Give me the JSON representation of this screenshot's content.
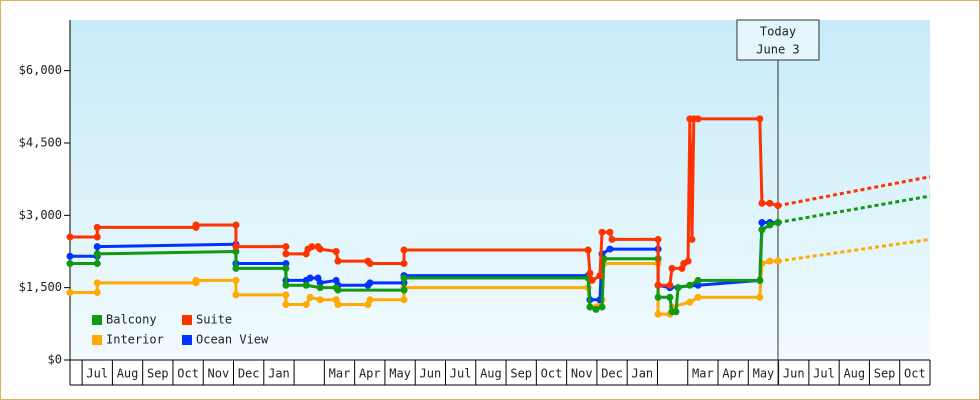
{
  "chart_data": {
    "type": "line",
    "categories": [
      "Jul",
      "Aug",
      "Sep",
      "Oct",
      "Nov",
      "Dec",
      "Jan",
      null,
      "Mar",
      "Apr",
      "May",
      "Jun",
      "Jul",
      "Aug",
      "Sep",
      "Oct",
      "Nov",
      "Dec",
      "Jan",
      null,
      "Mar",
      "Apr",
      "May",
      "Jun",
      "Jul",
      "Aug",
      "Sep",
      "Oct"
    ],
    "xlim": [
      -0.4,
      28.0
    ],
    "ylim": [
      0,
      7050
    ],
    "yticks": [
      {
        "value": 0,
        "label": "$0"
      },
      {
        "value": 1500,
        "label": "$1,500"
      },
      {
        "value": 3000,
        "label": "$3,000"
      },
      {
        "value": 4500,
        "label": "$4,500"
      },
      {
        "value": 6000,
        "label": "$6,000"
      }
    ],
    "legend": "lower-left",
    "series": [
      {
        "name": "Balcony",
        "color": "#119911",
        "x": [
          -0.4,
          0.5,
          0.5,
          5.08,
          5.08,
          6.73,
          6.73,
          7.4,
          7.86,
          8.39,
          8.45,
          10.63,
          10.63,
          16.71,
          16.77,
          16.97,
          17.17,
          17.23,
          19.02,
          19.02,
          19.41,
          19.48,
          19.61,
          19.68,
          20.07,
          20.34,
          22.38,
          22.45,
          22.71,
          22.98
        ],
        "values": [
          2000,
          2000,
          2200,
          2250,
          1900,
          1900,
          1550,
          1550,
          1500,
          1500,
          1450,
          1450,
          1700,
          1700,
          1100,
          1050,
          1100,
          2100,
          2100,
          1300,
          1300,
          1000,
          1000,
          1500,
          1550,
          1650,
          1650,
          2700,
          2800,
          2850
        ],
        "forecast": {
          "x": [
            22.98,
            28.0
          ],
          "values": [
            2850,
            3400
          ]
        }
      },
      {
        "name": "Suite",
        "color": "#ff3300",
        "x": [
          -0.4,
          0.5,
          0.5,
          3.76,
          3.76,
          5.08,
          5.08,
          6.73,
          6.73,
          7.4,
          7.46,
          7.59,
          7.79,
          7.86,
          8.39,
          8.45,
          9.44,
          9.51,
          10.63,
          10.63,
          16.71,
          16.77,
          16.84,
          17.1,
          17.17,
          17.43,
          17.5,
          19.02,
          19.02,
          19.41,
          19.48,
          19.81,
          19.87,
          20.01,
          20.07,
          20.14,
          20.2,
          20.34,
          22.38,
          22.45,
          22.71,
          22.98
        ],
        "values": [
          2550,
          2550,
          2750,
          2750,
          2800,
          2800,
          2350,
          2350,
          2200,
          2200,
          2300,
          2350,
          2350,
          2300,
          2250,
          2050,
          2050,
          2000,
          2000,
          2280,
          2280,
          1800,
          1650,
          1750,
          2650,
          2650,
          2500,
          2500,
          1550,
          1550,
          1900,
          1900,
          2000,
          2050,
          5000,
          2500,
          5000,
          5000,
          5000,
          3250,
          3250,
          3200
        ],
        "forecast": {
          "x": [
            22.98,
            28.0
          ],
          "values": [
            3200,
            3800
          ]
        }
      },
      {
        "name": "Interior",
        "color": "#ffaa00",
        "x": [
          -0.4,
          0.5,
          0.5,
          3.76,
          3.76,
          5.08,
          5.08,
          6.73,
          6.73,
          7.4,
          7.53,
          7.86,
          8.39,
          8.45,
          9.44,
          9.51,
          10.63,
          10.63,
          16.71,
          16.77,
          16.97,
          17.17,
          17.23,
          19.02,
          19.02,
          19.41,
          19.48,
          20.07,
          20.34,
          22.38,
          22.45,
          22.71,
          22.98
        ],
        "values": [
          1400,
          1400,
          1600,
          1600,
          1650,
          1650,
          1350,
          1350,
          1150,
          1150,
          1300,
          1250,
          1250,
          1150,
          1150,
          1250,
          1250,
          1500,
          1500,
          1100,
          1100,
          1250,
          2000,
          2000,
          950,
          950,
          1100,
          1200,
          1300,
          1300,
          2000,
          2050,
          2050
        ],
        "forecast": {
          "x": [
            22.98,
            28.0
          ],
          "values": [
            2050,
            2500
          ]
        }
      },
      {
        "name": "Ocean View",
        "color": "#0033ff",
        "x": [
          -0.4,
          0.5,
          0.5,
          5.08,
          5.08,
          6.73,
          6.73,
          7.4,
          7.53,
          7.79,
          7.86,
          8.39,
          8.45,
          9.44,
          9.51,
          10.63,
          10.63,
          16.71,
          16.77,
          17.1,
          17.17,
          17.43,
          19.02,
          19.02,
          19.41,
          20.34,
          22.38,
          22.45,
          22.71,
          22.98
        ],
        "values": [
          2150,
          2150,
          2350,
          2400,
          2000,
          2000,
          1650,
          1650,
          1700,
          1700,
          1600,
          1650,
          1550,
          1550,
          1600,
          1600,
          1750,
          1750,
          1250,
          1250,
          2200,
          2300,
          2300,
          1550,
          1500,
          1550,
          1650,
          2850,
          2850,
          2850
        ]
      }
    ],
    "annotation": {
      "x": 22.98,
      "lines": [
        "Today",
        "June 3"
      ]
    }
  }
}
